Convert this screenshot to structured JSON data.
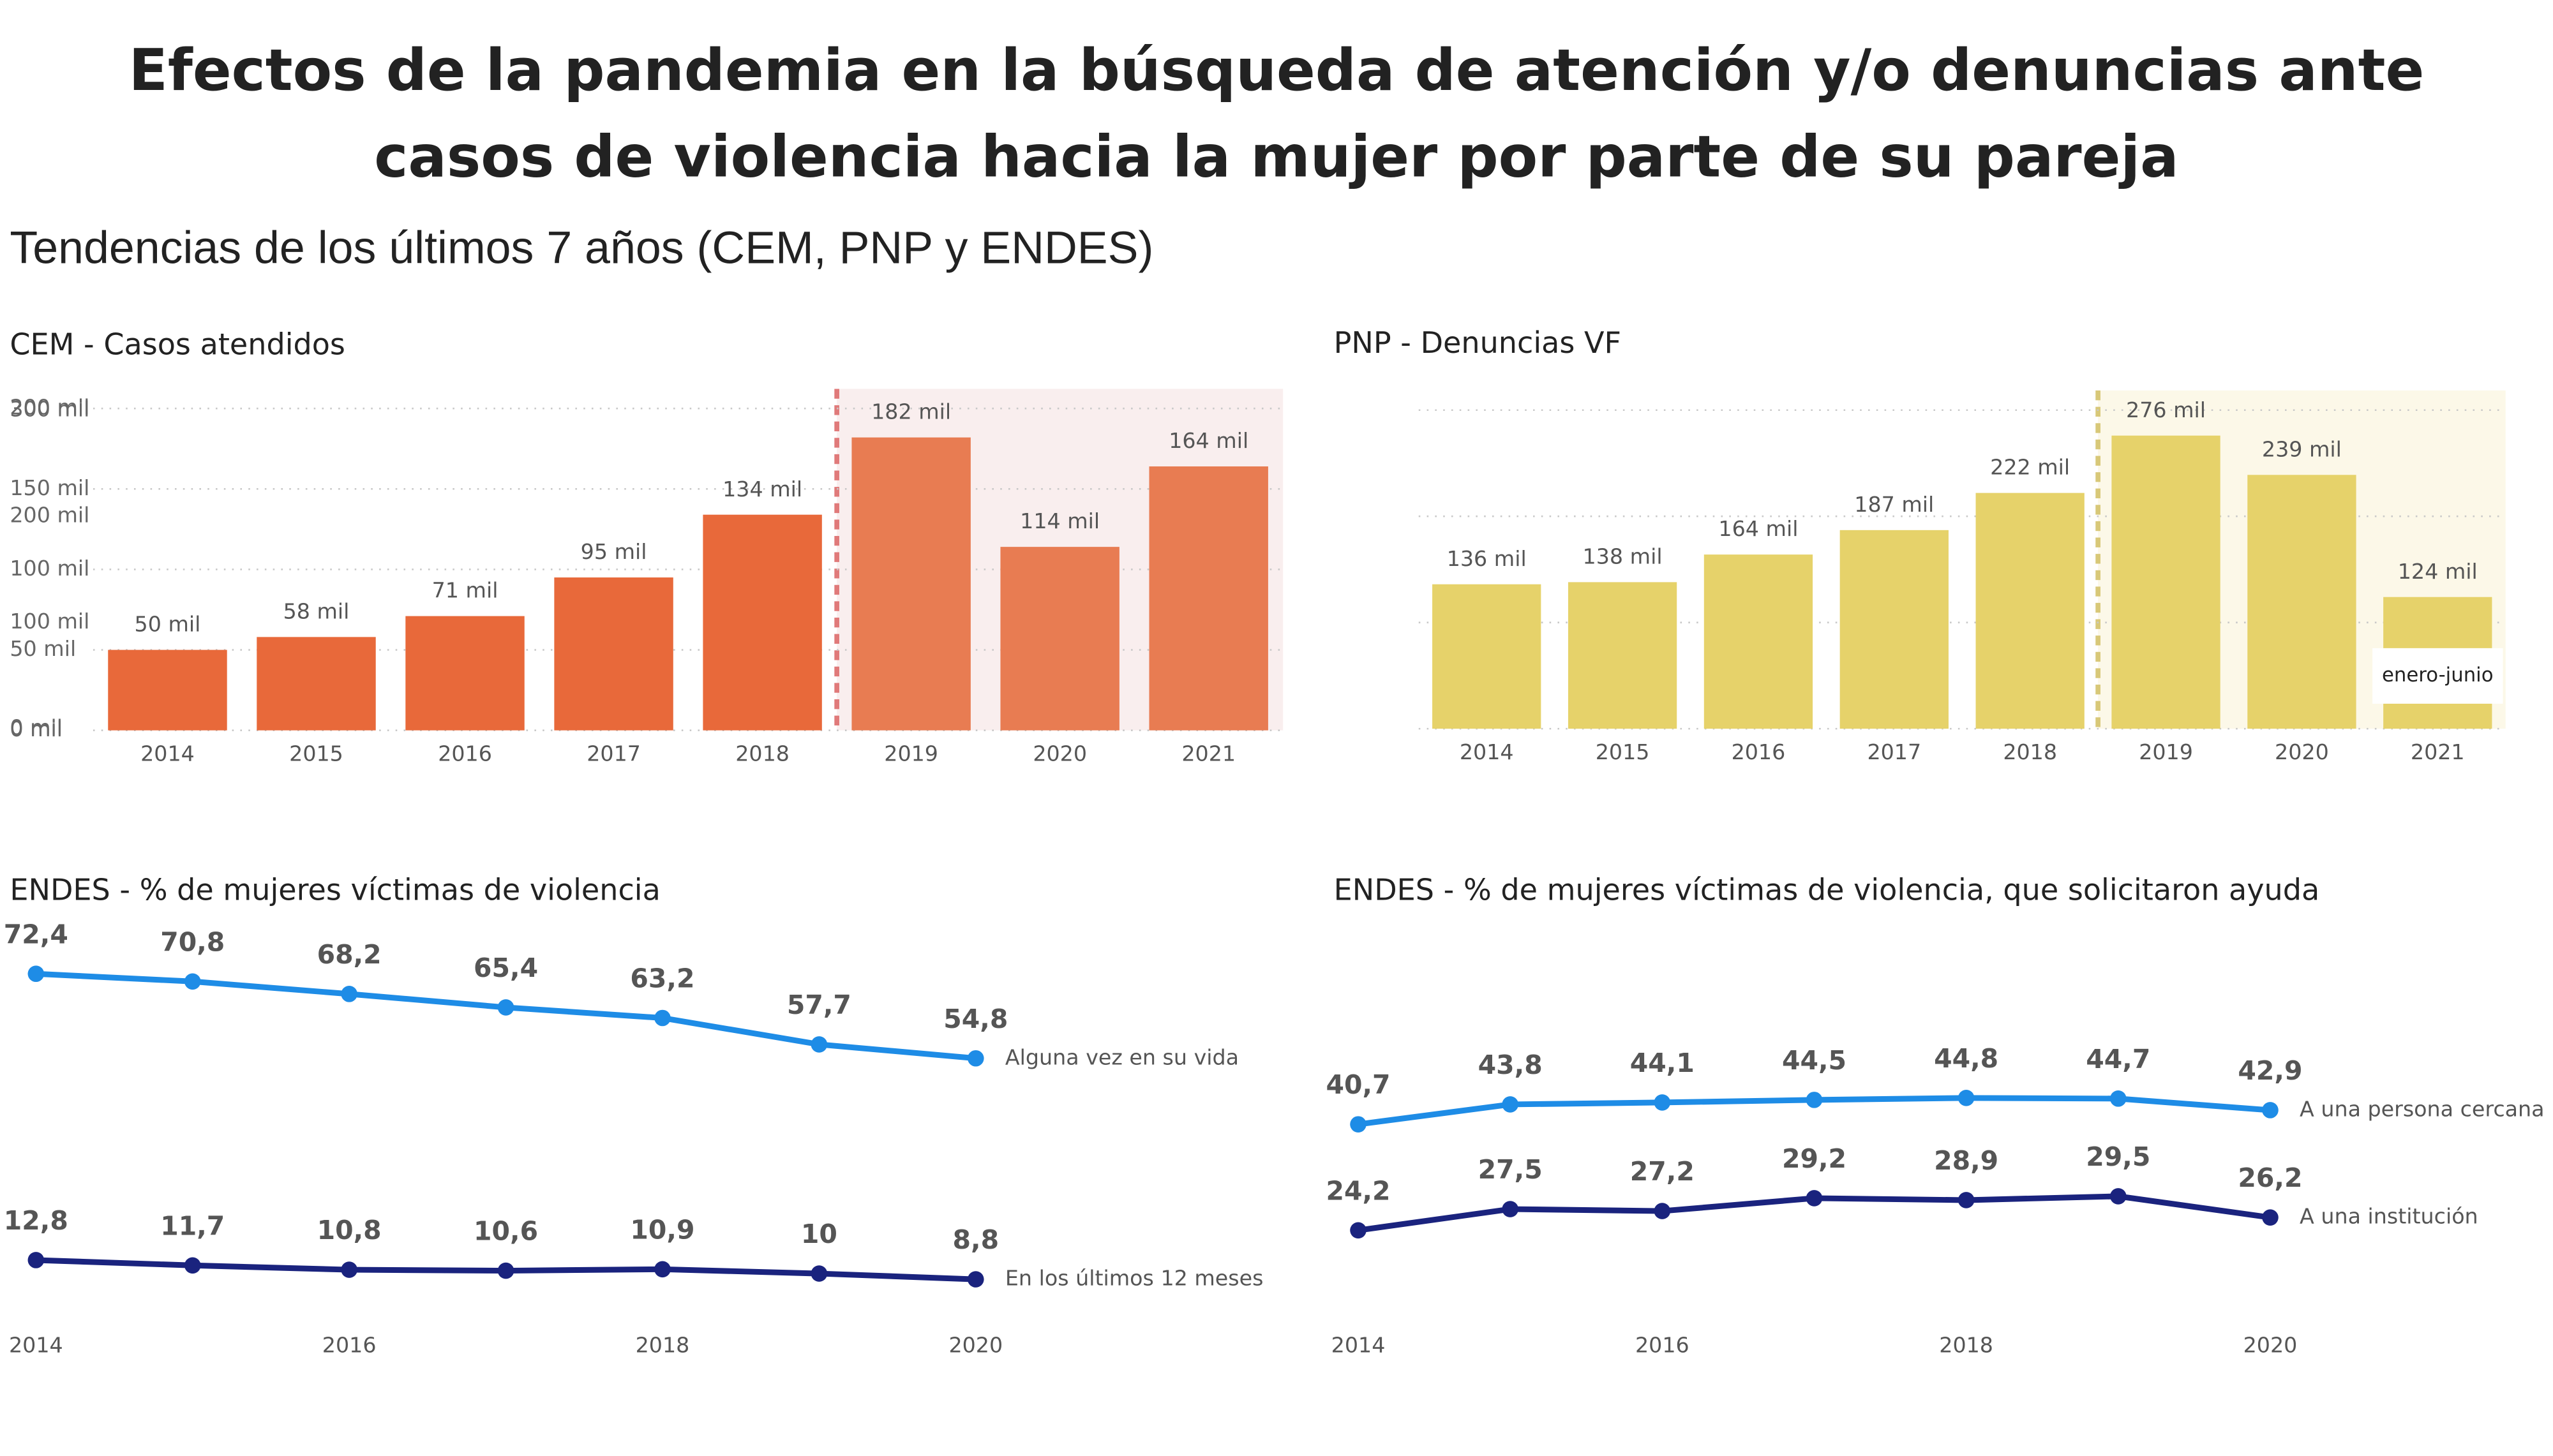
{
  "title": "Efectos de la pandemia en la búsqueda de atención y/o denuncias ante casos de violencia hacia la mujer por parte de su pareja",
  "subtitle": "Tendencias de los últimos 7 años (CEM, PNP y ENDES)",
  "chart_data": [
    {
      "type": "bar",
      "title": "CEM - Casos atendidos",
      "categories": [
        "2014",
        "2015",
        "2016",
        "2017",
        "2018",
        "2019",
        "2020",
        "2021"
      ],
      "values": [
        50,
        58,
        71,
        95,
        134,
        182,
        114,
        164
      ],
      "value_labels": [
        "50 mil",
        "58 mil",
        "71 mil",
        "95 mil",
        "134 mil",
        "182 mil",
        "114 mil",
        "164 mil"
      ],
      "colors": [
        "#e8693a",
        "#e8693a",
        "#e8693a",
        "#e8693a",
        "#e8693a",
        "#e87c52",
        "#e87c52",
        "#e87c52"
      ],
      "ylim": [
        0,
        200
      ],
      "yticks": [
        {
          "value": 0,
          "label": "0 mil"
        },
        {
          "value": 50,
          "label": "50 mil"
        },
        {
          "value": 100,
          "label": "100 mil"
        },
        {
          "value": 150,
          "label": "150 mil"
        },
        {
          "value": 200,
          "label": "200 mil"
        }
      ],
      "grid": true,
      "highlight": {
        "from": "2019",
        "color": "#f9eeee",
        "line_color": "#e07a7a"
      }
    },
    {
      "type": "bar",
      "title": "PNP - Denuncias VF",
      "categories": [
        "2014",
        "2015",
        "2016",
        "2017",
        "2018",
        "2019",
        "2020",
        "2021"
      ],
      "values": [
        136,
        138,
        164,
        187,
        222,
        276,
        239,
        124
      ],
      "value_labels": [
        "136 mil",
        "138 mil",
        "164 mil",
        "187 mil",
        "222 mil",
        "276 mil",
        "239 mil",
        "124 mil"
      ],
      "colors": [
        "#e6d26a",
        "#e6d26a",
        "#e6d26a",
        "#e6d26a",
        "#e6d26a",
        "#e6d26a",
        "#e6d26a",
        "#e6d26a"
      ],
      "ylim": [
        0,
        300
      ],
      "yticks": [
        {
          "value": 0,
          "label": "0 mil"
        },
        {
          "value": 100,
          "label": "100 mil"
        },
        {
          "value": 200,
          "label": "200 mil"
        },
        {
          "value": 300,
          "label": "300 mil"
        }
      ],
      "grid": true,
      "highlight": {
        "from": "2019",
        "color": "#fcf8e8",
        "line_color": "#d8c878"
      },
      "annotation": "enero-junio"
    },
    {
      "type": "line",
      "title": "ENDES - % de mujeres víctimas de violencia",
      "x": [
        2014,
        2015,
        2016,
        2017,
        2018,
        2019,
        2020
      ],
      "xlim": [
        2014,
        2020
      ],
      "xticks": [
        2014,
        2016,
        2018,
        2020
      ],
      "series": [
        {
          "name": "Alguna vez en su vida",
          "color": "#1e8ce6",
          "values": [
            72.4,
            70.8,
            68.2,
            65.4,
            63.2,
            57.7,
            54.8
          ],
          "value_labels": [
            "72,4",
            "70,8",
            "68,2",
            "65,4",
            "63,2",
            "57,7",
            "54,8"
          ]
        },
        {
          "name": "En los últimos 12 meses",
          "color": "#1a237e",
          "values": [
            12.8,
            11.7,
            10.8,
            10.6,
            10.9,
            10,
            8.8
          ],
          "value_labels": [
            "12,8",
            "11,7",
            "10,8",
            "10,6",
            "10,9",
            "10",
            "8,8"
          ]
        }
      ]
    },
    {
      "type": "line",
      "title": "ENDES - % de mujeres víctimas de violencia, que solicitaron ayuda",
      "x": [
        2014,
        2015,
        2016,
        2017,
        2018,
        2019,
        2020
      ],
      "xlim": [
        2014,
        2020
      ],
      "xticks": [
        2014,
        2016,
        2018,
        2020
      ],
      "series": [
        {
          "name": "A una persona cercana",
          "color": "#1e8ce6",
          "values": [
            40.7,
            43.8,
            44.1,
            44.5,
            44.8,
            44.7,
            42.9
          ],
          "value_labels": [
            "40,7",
            "43,8",
            "44,1",
            "44,5",
            "44,8",
            "44,7",
            "42,9"
          ]
        },
        {
          "name": "A una institución",
          "color": "#1a237e",
          "values": [
            24.2,
            27.5,
            27.2,
            29.2,
            28.9,
            29.5,
            26.2
          ],
          "value_labels": [
            "24,2",
            "27,5",
            "27,2",
            "29,2",
            "28,9",
            "29,5",
            "26,2"
          ]
        }
      ]
    }
  ]
}
